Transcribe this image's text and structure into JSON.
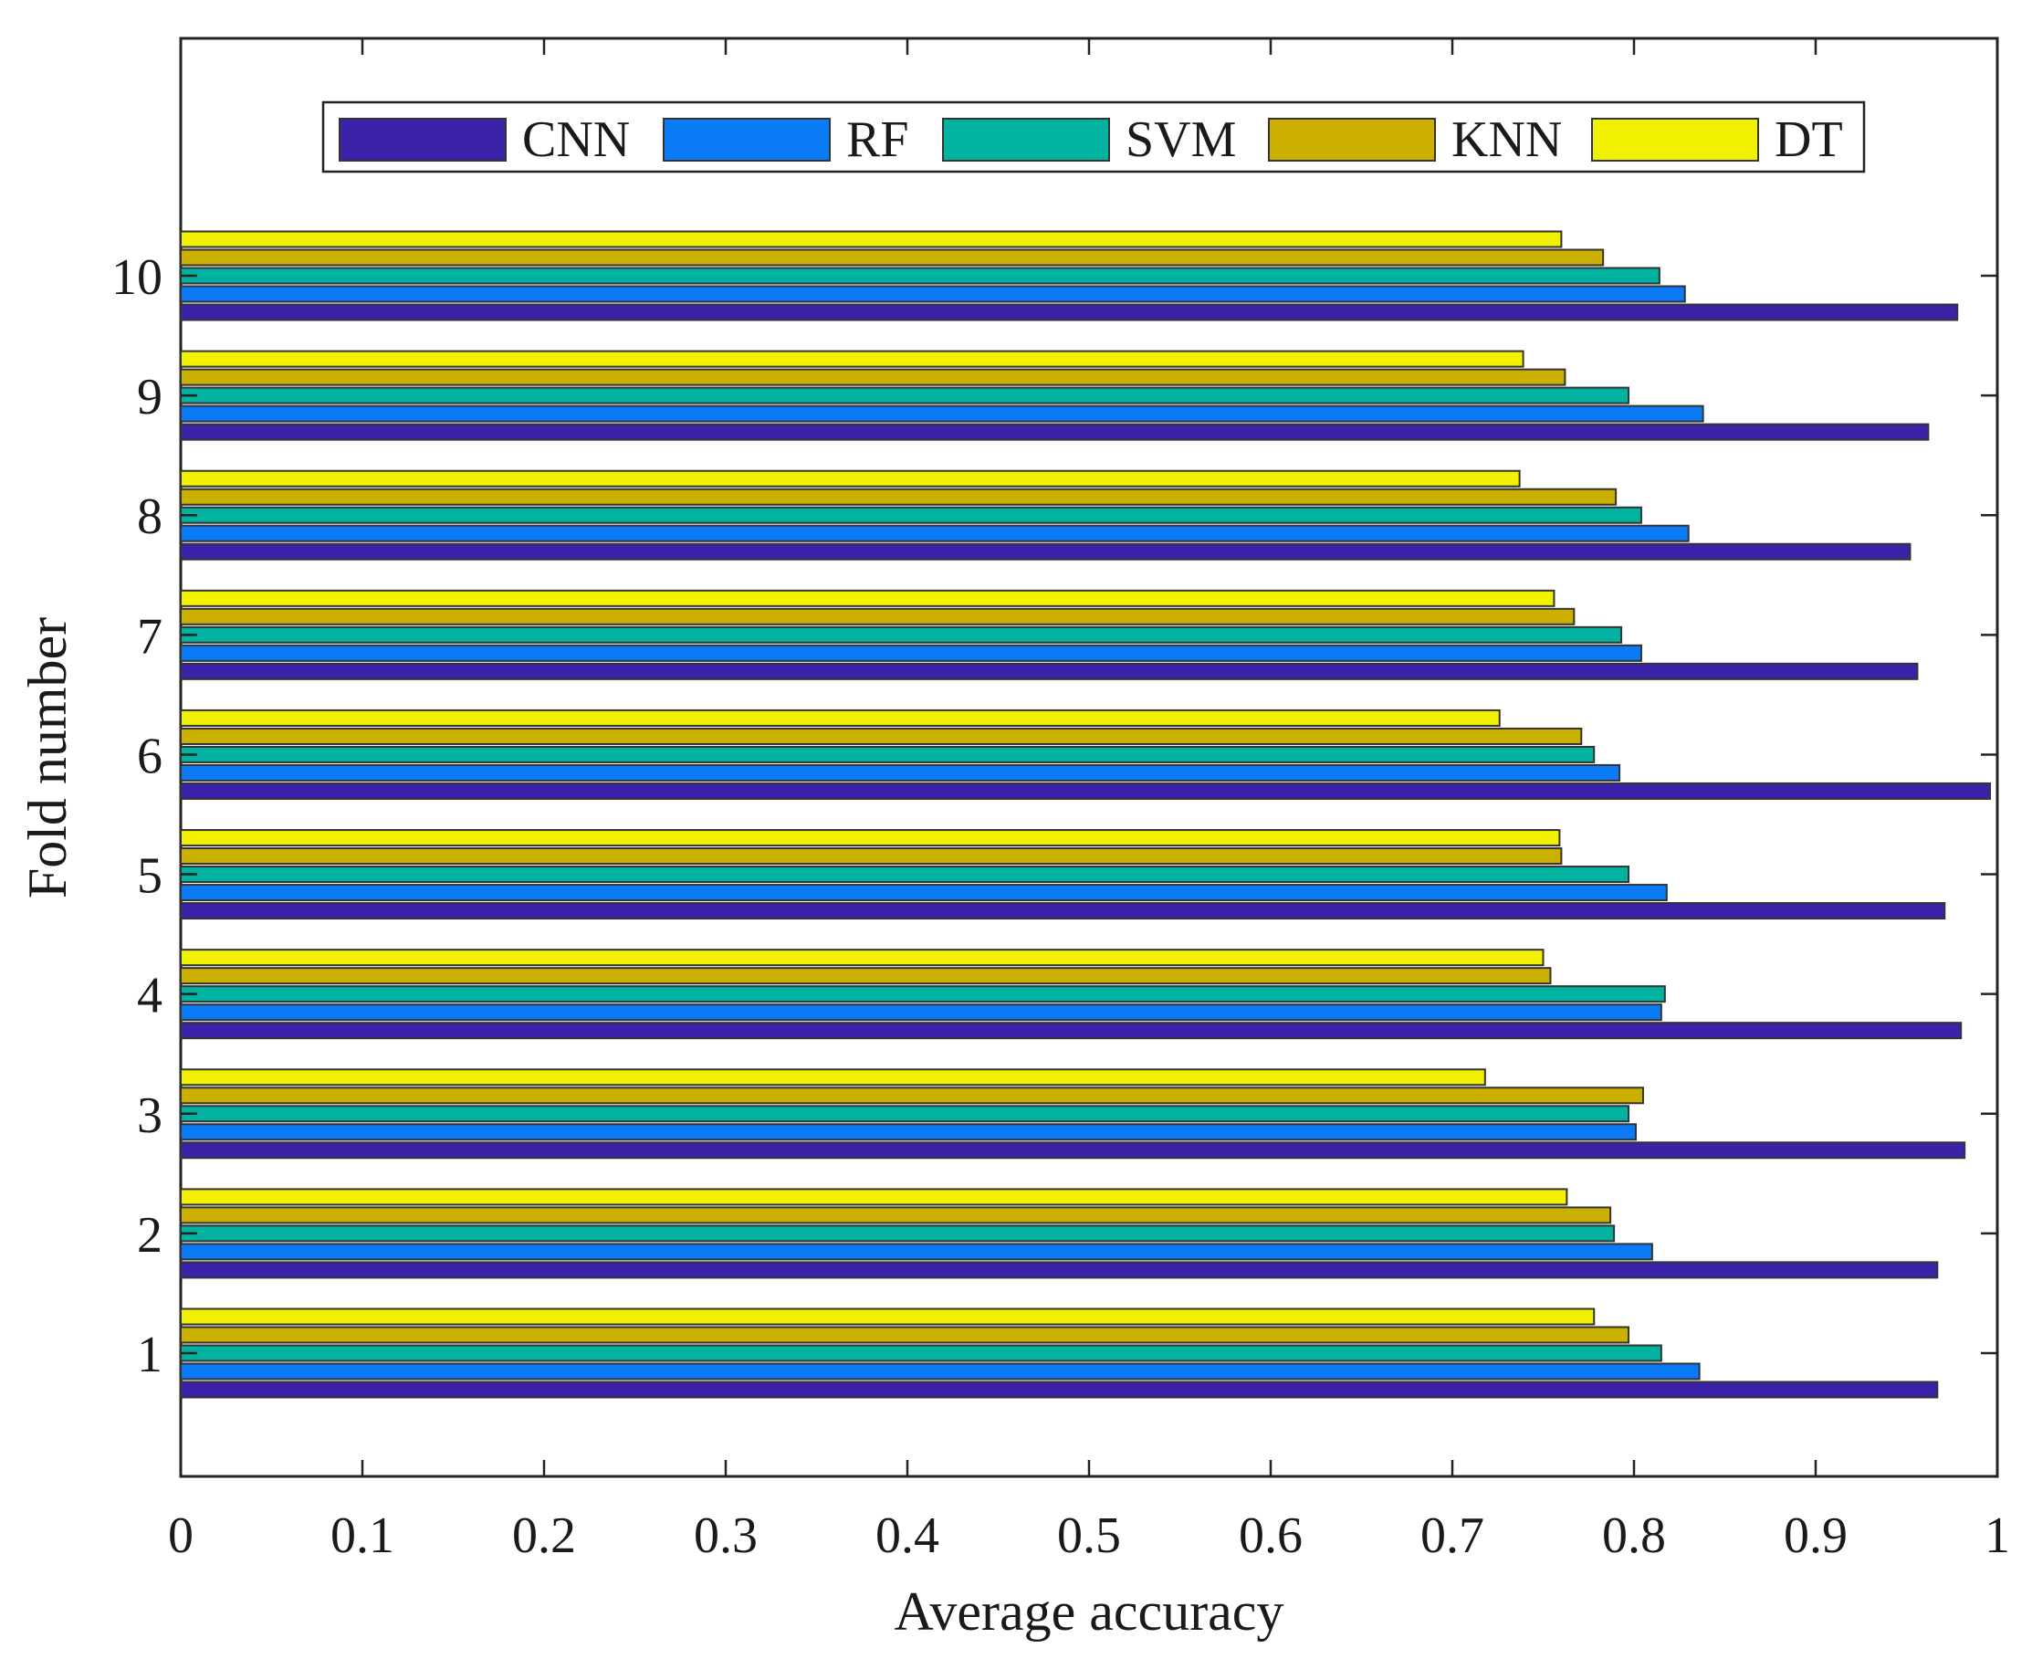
{
  "chart_data": {
    "type": "bar",
    "orientation": "horizontal",
    "categories": [
      "1",
      "2",
      "3",
      "4",
      "5",
      "6",
      "7",
      "8",
      "9",
      "10"
    ],
    "series": [
      {
        "name": "CNN",
        "color": "#3b22a8",
        "values": [
          0.967,
          0.967,
          0.982,
          0.98,
          0.971,
          0.996,
          0.956,
          0.952,
          0.962,
          0.978
        ]
      },
      {
        "name": "RF",
        "color": "#0a7af5",
        "values": [
          0.836,
          0.81,
          0.801,
          0.815,
          0.818,
          0.792,
          0.804,
          0.83,
          0.838,
          0.828
        ]
      },
      {
        "name": "SVM",
        "color": "#00b3a0",
        "values": [
          0.815,
          0.789,
          0.797,
          0.817,
          0.797,
          0.778,
          0.793,
          0.804,
          0.797,
          0.814
        ]
      },
      {
        "name": "KNN",
        "color": "#ccb000",
        "values": [
          0.797,
          0.787,
          0.805,
          0.754,
          0.76,
          0.771,
          0.767,
          0.79,
          0.762,
          0.783
        ]
      },
      {
        "name": "DT",
        "color": "#f2f200",
        "values": [
          0.778,
          0.763,
          0.718,
          0.75,
          0.759,
          0.726,
          0.756,
          0.737,
          0.739,
          0.76
        ]
      }
    ],
    "xlabel": "Average accuracy",
    "ylabel": "Fold number",
    "xlim": [
      0,
      1
    ],
    "xticks": [
      "0",
      "0.1",
      "0.2",
      "0.3",
      "0.4",
      "0.5",
      "0.6",
      "0.7",
      "0.8",
      "0.9",
      "1"
    ],
    "grid": false,
    "legend_position": "top, horizontal"
  }
}
